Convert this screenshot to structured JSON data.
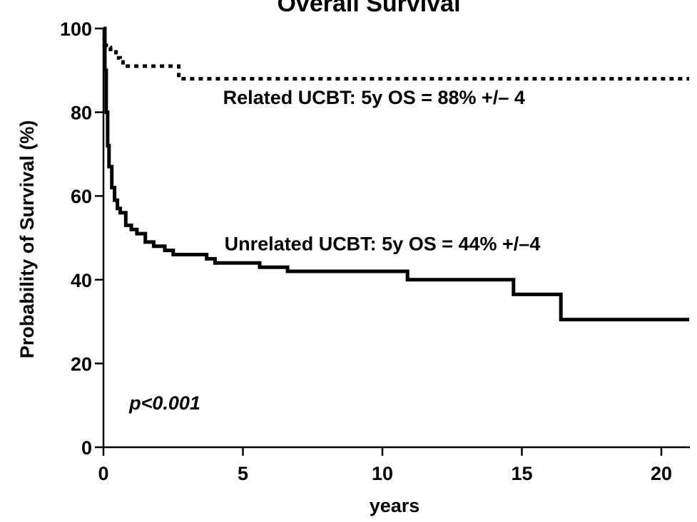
{
  "chart_data": {
    "type": "line",
    "title": "Overall Survival",
    "xlabel": "years",
    "ylabel": "Probability of Survival (%)",
    "xlim": [
      0,
      21
    ],
    "ylim": [
      0,
      100
    ],
    "x_ticks": [
      "0",
      "5",
      "10",
      "15",
      "20"
    ],
    "y_ticks": [
      "0",
      "20",
      "40",
      "60",
      "80",
      "100"
    ],
    "series": [
      {
        "style": "dotted",
        "color": "#000000",
        "x": [
          0,
          0.03,
          0.1,
          0.25,
          0.45,
          0.6,
          0.7,
          2.7,
          21
        ],
        "y": [
          100,
          96,
          95.5,
          95,
          93,
          92,
          91,
          88,
          88
        ]
      },
      {
        "style": "solid",
        "color": "#000000",
        "x": [
          0,
          0.05,
          0.1,
          0.15,
          0.2,
          0.3,
          0.4,
          0.5,
          0.6,
          0.8,
          1.0,
          1.2,
          1.5,
          1.8,
          2.2,
          2.5,
          3.0,
          3.7,
          4.0,
          5.0,
          5.6,
          6.6,
          8.0,
          10.9,
          13.0,
          14.7,
          16.4,
          21
        ],
        "y": [
          100,
          90,
          80,
          72,
          67,
          62,
          59,
          57,
          56,
          53,
          52,
          51,
          49,
          48,
          47,
          46,
          46,
          45,
          44,
          44,
          43,
          42,
          42,
          40,
          40,
          36.5,
          30.5,
          30.5
        ]
      }
    ],
    "annotations": [
      {
        "text": "Related UCBT: 5y OS = 88% +/– 4",
        "x": 9.7,
        "y": 82
      },
      {
        "text": "Unrelated UCBT: 5y OS = 44% +/–4",
        "x": 10,
        "y": 47
      },
      {
        "text": "p<0.001",
        "x": 2.2,
        "y": 9
      }
    ],
    "grid": false,
    "legend": "none"
  }
}
